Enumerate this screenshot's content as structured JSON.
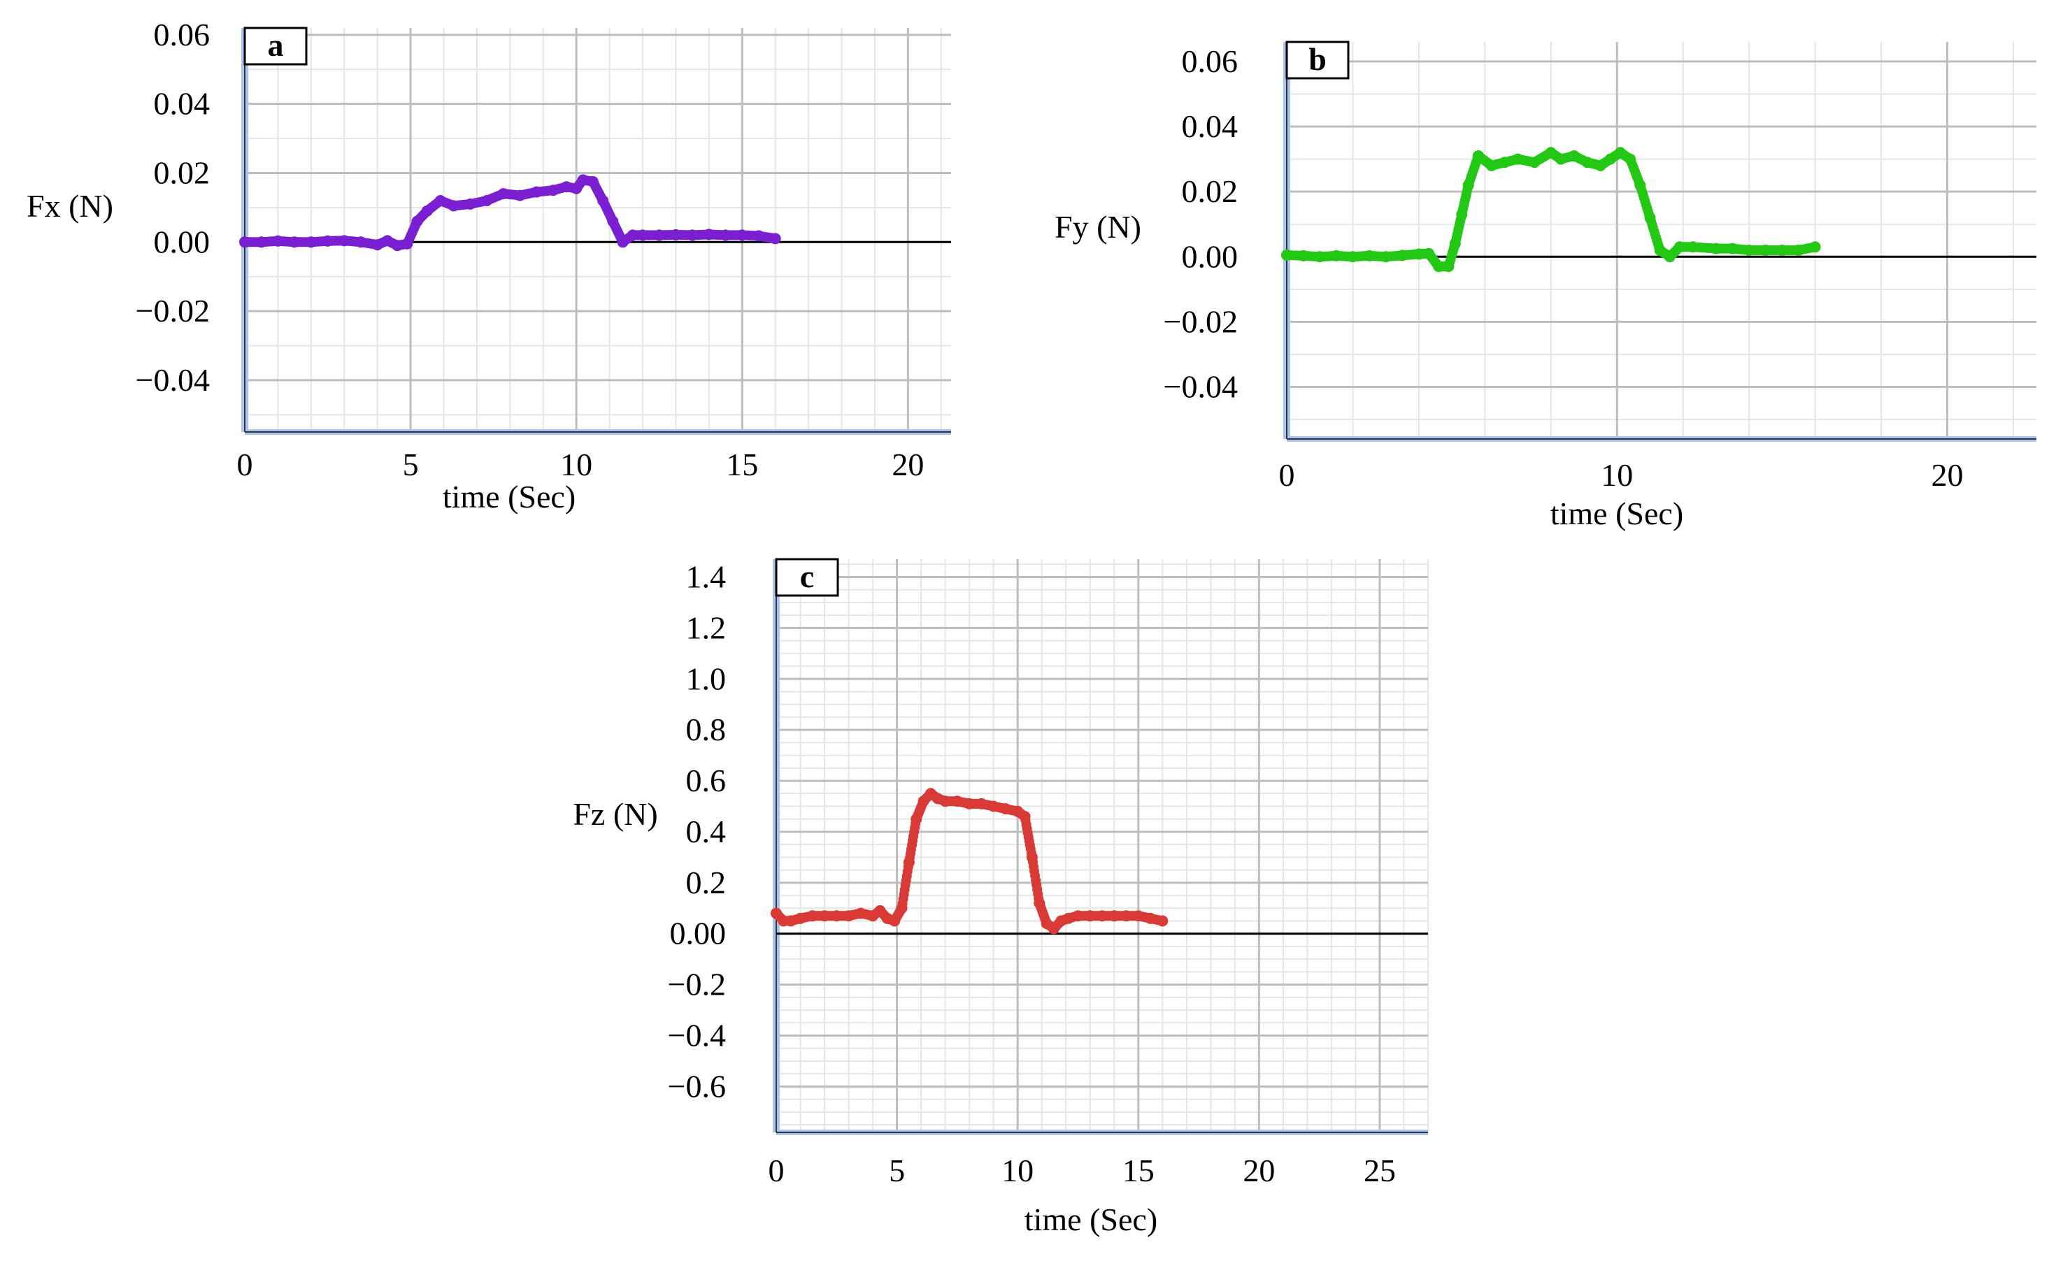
{
  "colors": {
    "background": "#ffffff",
    "grid_major": "#bdbdbd",
    "grid_minor": "#e6e6e6",
    "axis_highlight": "#aac4f2",
    "zero_line": "#000000"
  },
  "chart_data": [
    {
      "type": "scatter",
      "panel_label": "a",
      "xlabel": "time (Sec)",
      "ylabel": "Fx (N)",
      "xlim": [
        0,
        21.3
      ],
      "ylim": [
        -0.055,
        0.062
      ],
      "xticks": [
        0,
        5,
        10,
        15,
        20
      ],
      "yticks": [
        0.06,
        0.04,
        0.02,
        0.0,
        -0.02,
        -0.04
      ],
      "ytick_labels": [
        "0.06",
        "0.04",
        "0.02",
        "0.00",
        "−0.02",
        "−0.04"
      ],
      "grid": true,
      "color": "#7a1fd1",
      "series": [
        {
          "x": [
            0,
            0.5,
            1,
            1.5,
            2,
            2.5,
            3,
            3.5,
            4,
            4.3,
            4.6,
            4.9,
            5.2,
            5.5,
            5.9,
            6.3,
            6.8,
            7.3,
            7.8,
            8.3,
            8.8,
            9.3,
            9.7,
            10.0,
            10.2,
            10.5,
            10.8,
            11.1,
            11.4,
            11.7,
            12.0,
            12.5,
            13,
            13.5,
            14,
            14.5,
            15,
            15.5,
            16.0
          ],
          "y": [
            0.0,
            0.0,
            0.0003,
            0.0,
            0.0,
            0.0003,
            0.0004,
            0.0,
            -0.0008,
            0.0004,
            -0.001,
            -0.0005,
            0.006,
            0.009,
            0.012,
            0.0105,
            0.011,
            0.012,
            0.014,
            0.0135,
            0.0145,
            0.015,
            0.016,
            0.0155,
            0.018,
            0.0175,
            0.012,
            0.006,
            0.0,
            0.002,
            0.002,
            0.002,
            0.0021,
            0.002,
            0.0022,
            0.002,
            0.002,
            0.0018,
            0.001
          ]
        }
      ]
    },
    {
      "type": "scatter",
      "panel_label": "b",
      "xlabel": "time (Sec)",
      "ylabel": "Fy (N)",
      "xlim": [
        0,
        22.7
      ],
      "ylim": [
        -0.056,
        0.066
      ],
      "xticks": [
        0,
        10,
        20
      ],
      "yticks": [
        0.06,
        0.04,
        0.02,
        0.0,
        -0.02,
        -0.04
      ],
      "ytick_labels": [
        "0.06",
        "0.04",
        "0.02",
        "0.00",
        "−0.02",
        "−0.04"
      ],
      "grid": true,
      "color": "#22c814",
      "series": [
        {
          "x": [
            0,
            0.5,
            1,
            1.5,
            2,
            2.5,
            3,
            3.5,
            4,
            4.3,
            4.6,
            4.9,
            5.1,
            5.3,
            5.5,
            5.8,
            6.2,
            6.6,
            7.0,
            7.5,
            8.0,
            8.3,
            8.7,
            9.1,
            9.5,
            9.8,
            10.1,
            10.4,
            10.7,
            11.0,
            11.3,
            11.6,
            11.9,
            12.3,
            13,
            13.5,
            14,
            14.5,
            15,
            15.5,
            16.0
          ],
          "y": [
            0.0005,
            0.0003,
            0.0,
            0.0003,
            0.0,
            0.0003,
            0.0,
            0.0004,
            0.0008,
            0.001,
            -0.003,
            -0.003,
            0.004,
            0.013,
            0.022,
            0.031,
            0.028,
            0.029,
            0.03,
            0.029,
            0.032,
            0.03,
            0.031,
            0.029,
            0.028,
            0.03,
            0.032,
            0.03,
            0.022,
            0.012,
            0.002,
            0.0,
            0.003,
            0.003,
            0.0025,
            0.0025,
            0.002,
            0.002,
            0.002,
            0.002,
            0.003
          ]
        }
      ]
    },
    {
      "type": "scatter",
      "panel_label": "c",
      "xlabel": "time (Sec)",
      "ylabel": "Fz (N)",
      "xlim": [
        0,
        27.0
      ],
      "ylim": [
        -0.78,
        1.47
      ],
      "xticks": [
        0,
        5,
        10,
        15,
        20,
        25
      ],
      "yticks": [
        1.4,
        1.2,
        1.0,
        0.8,
        0.6,
        0.4,
        0.2,
        0.0,
        -0.2,
        -0.4,
        -0.6
      ],
      "ytick_labels": [
        "1.4",
        "1.2",
        "1.0",
        "0.8",
        "0.6",
        "0.4",
        "0.2",
        "0.00",
        "−0.2",
        "−0.4",
        "−0.6"
      ],
      "grid": true,
      "color": "#d93a36",
      "series": [
        {
          "x": [
            0,
            0.3,
            0.6,
            1.0,
            1.5,
            2.0,
            2.5,
            3.0,
            3.5,
            4.0,
            4.3,
            4.6,
            4.9,
            5.2,
            5.5,
            5.8,
            6.1,
            6.4,
            6.7,
            7.0,
            7.5,
            8.0,
            8.5,
            9.0,
            9.5,
            10.0,
            10.3,
            10.6,
            10.9,
            11.2,
            11.5,
            11.8,
            12.1,
            12.5,
            13.0,
            13.5,
            14.0,
            14.5,
            15.0,
            15.5,
            16.0
          ],
          "y": [
            0.08,
            0.05,
            0.05,
            0.06,
            0.07,
            0.07,
            0.07,
            0.07,
            0.08,
            0.07,
            0.09,
            0.06,
            0.05,
            0.1,
            0.28,
            0.45,
            0.52,
            0.55,
            0.53,
            0.52,
            0.52,
            0.51,
            0.51,
            0.5,
            0.49,
            0.48,
            0.46,
            0.3,
            0.12,
            0.04,
            0.02,
            0.05,
            0.06,
            0.07,
            0.07,
            0.07,
            0.07,
            0.07,
            0.07,
            0.06,
            0.05
          ]
        }
      ]
    }
  ]
}
